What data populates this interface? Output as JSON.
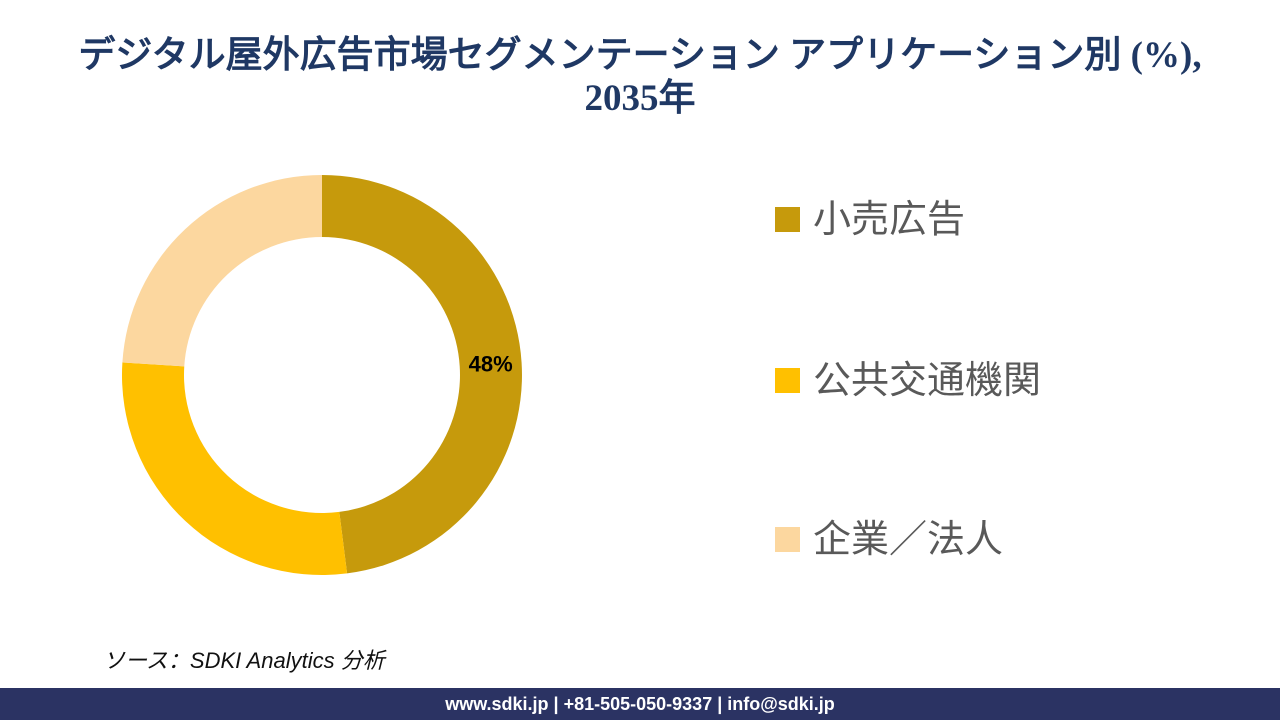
{
  "title": {
    "line1": "デジタル屋外広告市場セグメンテーション アプリケーション別 (%),",
    "line2": "2035年"
  },
  "chart_data": {
    "type": "donut",
    "title": "デジタル屋外広告市場セグメンテーション アプリケーション別 (%), 2035年",
    "segments": [
      {
        "label": "小売広告",
        "value": 48,
        "color": "#C69A0C",
        "data_label": "48%"
      },
      {
        "label": "公共交通機関",
        "value": 28,
        "color": "#FFC000",
        "data_label": ""
      },
      {
        "label": "企業／法人",
        "value": 24,
        "color": "#FCD79F",
        "data_label": ""
      }
    ],
    "start_angle_deg": 0,
    "direction": "clockwise",
    "inner_radius_ratio": 0.69,
    "legend_position": "right",
    "data_label_color": "#000000"
  },
  "source_note": "ソース：SDKI Analytics  分析",
  "footer": {
    "text": "www.sdki.jp | +81-505-050-9337 | info@sdki.jp",
    "bar_color": "#2B3363"
  },
  "colors": {
    "title_text": "#1F3864",
    "legend_text": "#595959"
  }
}
